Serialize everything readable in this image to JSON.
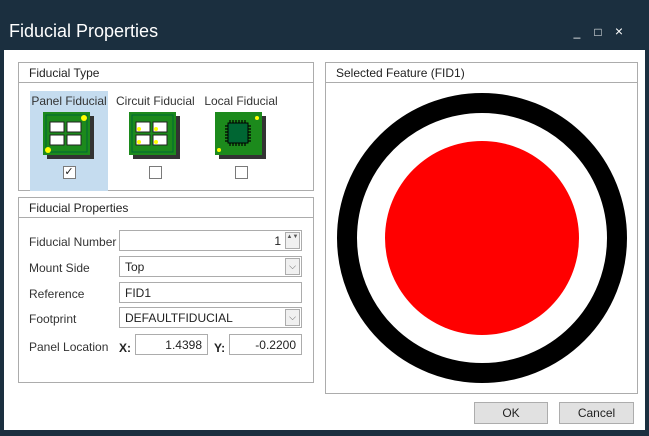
{
  "window": {
    "title": "Fiducial Properties",
    "minimize": "_",
    "maximize": "□",
    "close": "×"
  },
  "fiducial_type": {
    "header": "Fiducial Type",
    "options": [
      {
        "label": "Panel Fiducial",
        "checked": true,
        "icon": "panel-fiducial-icon"
      },
      {
        "label": "Circuit Fiducial",
        "checked": false,
        "icon": "circuit-fiducial-icon"
      },
      {
        "label": "Local Fiducial",
        "checked": false,
        "icon": "local-fiducial-icon"
      }
    ],
    "check_mark": "✓"
  },
  "properties": {
    "header": "Fiducial Properties",
    "fiducial_number": {
      "label": "Fiducial Number",
      "value": "1"
    },
    "mount_side": {
      "label": "Mount Side",
      "value": "Top"
    },
    "reference": {
      "label": "Reference",
      "value": "FID1"
    },
    "footprint": {
      "label": "Footprint",
      "value": "DEFAULTFIDUCIAL"
    },
    "panel_location": {
      "label": "Panel Location",
      "x_label": "X:",
      "x": "1.4398",
      "y_label": "Y:",
      "y": "-0.2200"
    }
  },
  "preview": {
    "header": "Selected Feature (FID1)",
    "ring_color": "#000000",
    "pad_color": "#ff0000"
  },
  "buttons": {
    "ok": "OK",
    "cancel": "Cancel"
  },
  "icons": {
    "spin": "▲▼",
    "dropdown": "⌵"
  }
}
